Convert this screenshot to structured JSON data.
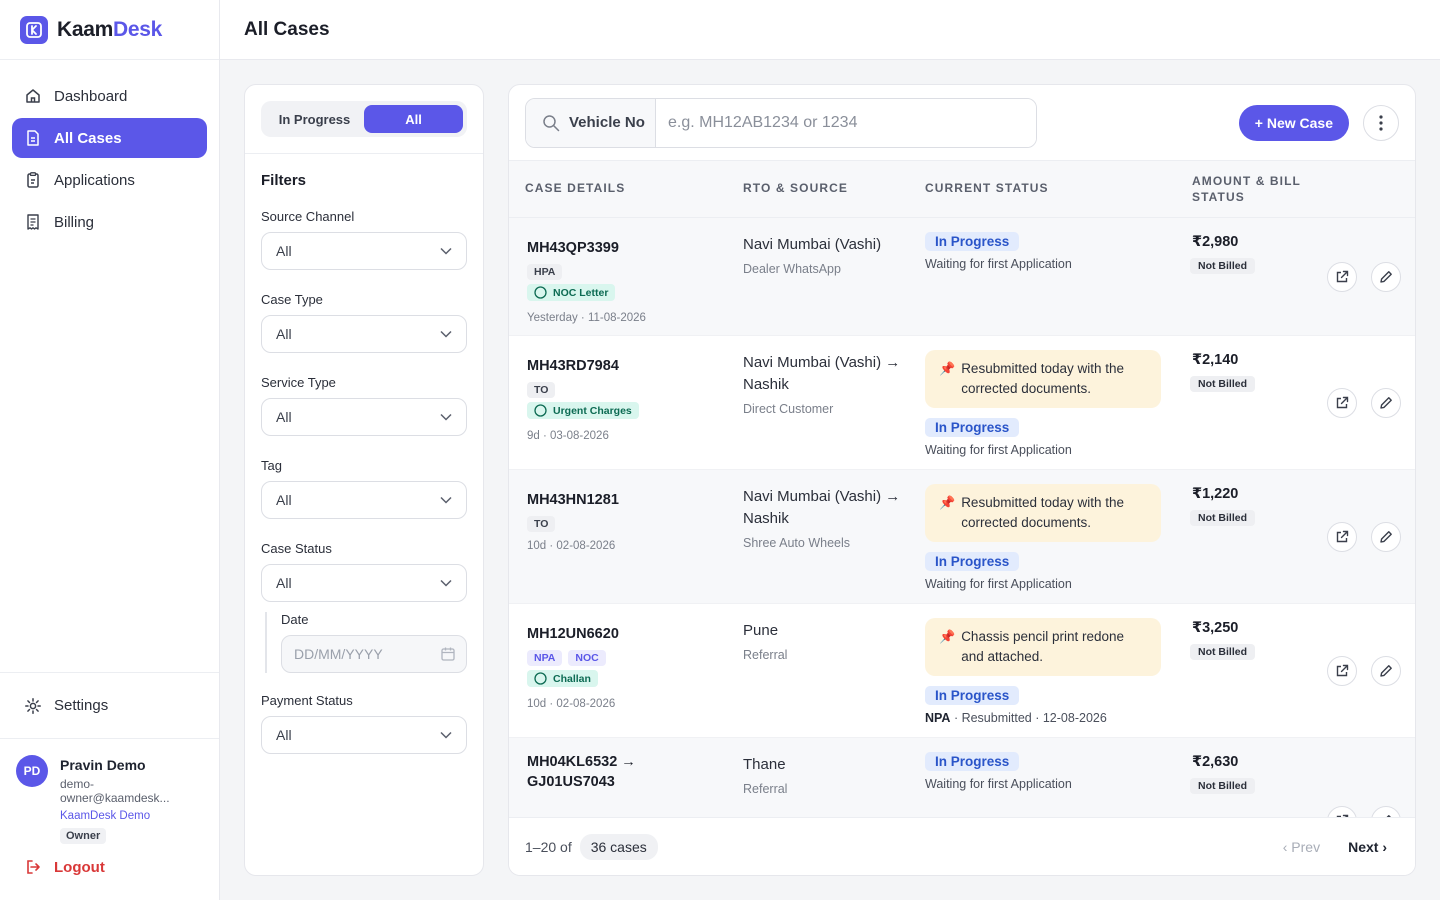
{
  "brand": {
    "part1": "Kaam",
    "part2": "Desk"
  },
  "nav": [
    {
      "label": "Dashboard",
      "icon": "home-icon"
    },
    {
      "label": "All Cases",
      "icon": "document-icon",
      "active": true
    },
    {
      "label": "Applications",
      "icon": "clipboard-icon"
    },
    {
      "label": "Billing",
      "icon": "receipt-icon"
    }
  ],
  "settings_label": "Settings",
  "user": {
    "initials": "PD",
    "name": "Pravin Demo",
    "email": "demo-owner@kaamdesk...",
    "org": "KaamDesk Demo",
    "role": "Owner"
  },
  "logout_label": "Logout",
  "header": {
    "title": "All Cases"
  },
  "segment": {
    "opt1": "In Progress",
    "opt2": "All"
  },
  "filters": {
    "title": "Filters",
    "source_channel": {
      "label": "Source Channel",
      "value": "All"
    },
    "case_type": {
      "label": "Case Type",
      "value": "All"
    },
    "service_type": {
      "label": "Service Type",
      "value": "All"
    },
    "tag": {
      "label": "Tag",
      "value": "All"
    },
    "case_status": {
      "label": "Case Status",
      "value": "All"
    },
    "date": {
      "label": "Date",
      "placeholder": "DD/MM/YYYY"
    },
    "payment_status": {
      "label": "Payment Status",
      "value": "All"
    }
  },
  "search": {
    "selector": "Vehicle No",
    "placeholder": "e.g. MH12AB1234 or 1234"
  },
  "new_case_label": "+ New Case",
  "table": {
    "headers": {
      "c1": "CASE DETAILS",
      "c2": "RTO & SOURCE",
      "c3": "CURRENT STATUS",
      "c4a": "AMOUNT & BILL",
      "c4b": "STATUS"
    },
    "rows": [
      {
        "plate": "MH43QP3399",
        "tags": [
          "HPA"
        ],
        "badge": "NOC Letter",
        "meta": "Yesterday · 11-08-2026",
        "rto": "Navi Mumbai (Vashi)",
        "source": "Dealer WhatsApp",
        "note": "",
        "status": "In Progress",
        "status_sub": "Waiting for first Application",
        "amount": "₹2,980",
        "bill": "Not Billed"
      },
      {
        "plate": "MH43RD7984",
        "tags": [
          "TO"
        ],
        "badge": "Urgent Charges",
        "meta": "9d · 03-08-2026",
        "rto": "Navi Mumbai (Vashi) → Nashik",
        "source": "Direct Customer",
        "note": "Resubmitted today with the corrected documents.",
        "status": "In Progress",
        "status_sub": "Waiting for first Application",
        "amount": "₹2,140",
        "bill": "Not Billed"
      },
      {
        "plate": "MH43HN1281",
        "tags": [
          "TO"
        ],
        "badge": "",
        "meta": "10d · 02-08-2026",
        "rto": "Navi Mumbai (Vashi) → Nashik",
        "source": "Shree Auto Wheels",
        "note": "Resubmitted today with the corrected documents.",
        "status": "In Progress",
        "status_sub": "Waiting for first Application",
        "amount": "₹1,220",
        "bill": "Not Billed"
      },
      {
        "plate": "MH12UN6620",
        "tags": [
          "NPA",
          "NOC"
        ],
        "badge": "Challan",
        "meta": "10d · 02-08-2026",
        "rto": "Pune",
        "source": "Referral",
        "note": "Chassis pencil print redone and attached.",
        "status": "In Progress",
        "status_sub_bold": "NPA",
        "status_sub": " · Resubmitted · 12-08-2026",
        "amount": "₹3,250",
        "bill": "Not Billed"
      },
      {
        "plate": "MH04KL6532 → GJ01US7043",
        "tags": [],
        "badge": "",
        "meta": "",
        "rto": "Thane",
        "source": "Referral",
        "note": "",
        "status": "In Progress",
        "status_sub": "Waiting for first Application",
        "amount": "₹2,630",
        "bill": "Not Billed"
      }
    ]
  },
  "pagination": {
    "range": "1–20 of",
    "count": "36 cases",
    "prev": "‹ Prev",
    "next": "Next ›"
  }
}
